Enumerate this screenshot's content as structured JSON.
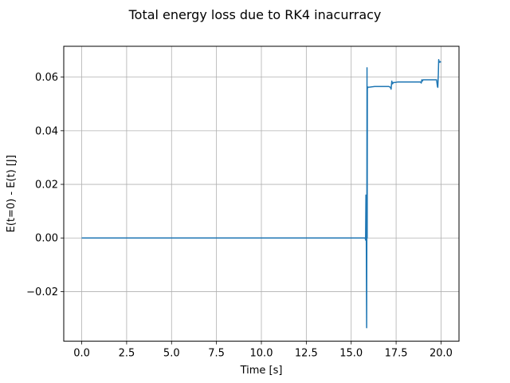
{
  "chart_data": {
    "type": "line",
    "title": "Total energy loss due to RK4 inacurracy",
    "xlabel": "Time [s]",
    "ylabel": "E(t=0) - E(t) [J]",
    "xlim": [
      -1.0,
      21.0
    ],
    "ylim": [
      -0.0385,
      0.0715
    ],
    "x_ticks": [
      0.0,
      2.5,
      5.0,
      7.5,
      10.0,
      12.5,
      15.0,
      17.5,
      20.0
    ],
    "x_tick_labels": [
      "0.0",
      "2.5",
      "5.0",
      "7.5",
      "10.0",
      "12.5",
      "15.0",
      "17.5",
      "20.0"
    ],
    "y_ticks": [
      -0.02,
      0.0,
      0.02,
      0.04,
      0.06
    ],
    "y_tick_labels": [
      "−0.02",
      "0.00",
      "0.02",
      "0.04",
      "0.06"
    ],
    "grid": true,
    "line_color": "#1f77b4",
    "series": [
      {
        "x": [
          0.0,
          15.7,
          15.78,
          15.8,
          15.82,
          15.84,
          15.86,
          15.87,
          15.88,
          15.89,
          15.9,
          15.91,
          15.93,
          15.97,
          16.05,
          16.3,
          16.8,
          17.1,
          17.18,
          17.22,
          17.26,
          17.3,
          17.35,
          17.45,
          17.6,
          18.0,
          18.5,
          18.85,
          18.9,
          18.93,
          18.96,
          19.0,
          19.2,
          19.5,
          19.75,
          19.8,
          19.82,
          19.85,
          19.87,
          19.9,
          19.95,
          20.0
        ],
        "y": [
          0.0,
          0.0,
          0.0,
          -0.0008,
          0.016,
          0.0,
          -0.0335,
          0.0,
          0.0635,
          0.0,
          0.0555,
          0.056,
          0.0563,
          0.0562,
          0.0563,
          0.0565,
          0.0565,
          0.0565,
          0.0562,
          0.0555,
          0.0585,
          0.0575,
          0.058,
          0.058,
          0.0582,
          0.0582,
          0.0582,
          0.0582,
          0.0578,
          0.059,
          0.0585,
          0.059,
          0.059,
          0.059,
          0.059,
          0.0565,
          0.0562,
          0.061,
          0.0665,
          0.0655,
          0.0658,
          0.0655
        ]
      }
    ]
  }
}
